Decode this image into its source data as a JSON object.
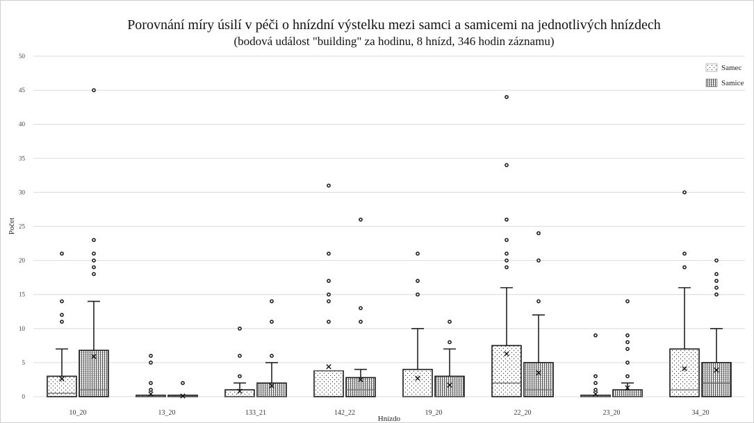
{
  "chart_data": {
    "type": "boxplot",
    "title": "Porovnání míry úsilí v péči o hnízdní výstelku mezi samci a samicemi na jednotlivých hnízdech",
    "subtitle": "(bodová událost \"building\" za hodinu, 8 hnízd, 346 hodin záznamu)",
    "xlabel": "Hnízdo",
    "ylabel": "Počet",
    "ylim": [
      0,
      50
    ],
    "yticks": [
      0,
      5,
      10,
      15,
      20,
      25,
      30,
      35,
      40,
      45,
      50
    ],
    "grid": true,
    "legend_position": "top-right",
    "categories": [
      "10_20",
      "13_20",
      "133_21",
      "142_22",
      "19_20",
      "22_20",
      "23_20",
      "34_20"
    ],
    "series": [
      {
        "name": "Samec",
        "pattern": "dots",
        "boxes": [
          {
            "whisker_low": 0,
            "q1": 0,
            "median": 0.5,
            "q3": 3,
            "whisker_high": 7,
            "mean": 2.6,
            "outliers": [
              11,
              12,
              14,
              21
            ]
          },
          {
            "whisker_low": 0,
            "q1": 0,
            "median": 0,
            "q3": 0,
            "whisker_high": 0,
            "mean": 0.4,
            "outliers": [
              1,
              2,
              5,
              6
            ]
          },
          {
            "whisker_low": 0,
            "q1": 0,
            "median": 0,
            "q3": 1,
            "whisker_high": 2,
            "mean": 0.8,
            "outliers": [
              3,
              6,
              10
            ]
          },
          {
            "whisker_low": 0,
            "q1": 0,
            "median": 3.8,
            "q3": 3.8,
            "whisker_high": 3.8,
            "mean": 4.4,
            "outliers": [
              11,
              14,
              15,
              17,
              21,
              31
            ]
          },
          {
            "whisker_low": 0,
            "q1": 0,
            "median": 0,
            "q3": 4,
            "whisker_high": 10,
            "mean": 2.7,
            "outliers": [
              15,
              17,
              21
            ]
          },
          {
            "whisker_low": 0,
            "q1": 0,
            "median": 2,
            "q3": 7.5,
            "whisker_high": 16,
            "mean": 6.3,
            "outliers": [
              19,
              20,
              21,
              23,
              26,
              34,
              44
            ]
          },
          {
            "whisker_low": 0,
            "q1": 0,
            "median": 0,
            "q3": 0,
            "whisker_high": 0,
            "mean": 0.4,
            "outliers": [
              1,
              2,
              3,
              9
            ]
          },
          {
            "whisker_low": 0,
            "q1": 0,
            "median": 1,
            "q3": 7,
            "whisker_high": 16,
            "mean": 4.1,
            "outliers": [
              19,
              21,
              30
            ]
          }
        ]
      },
      {
        "name": "Samice",
        "pattern": "vertical-lines",
        "boxes": [
          {
            "whisker_low": 0,
            "q1": 0,
            "median": 1,
            "q3": 6.8,
            "whisker_high": 14,
            "mean": 5.9,
            "outliers": [
              18,
              19,
              20,
              21,
              23,
              45
            ]
          },
          {
            "whisker_low": 0,
            "q1": 0,
            "median": 0,
            "q3": 0,
            "whisker_high": 0,
            "mean": 0.1,
            "outliers": [
              2
            ]
          },
          {
            "whisker_low": 0,
            "q1": 0,
            "median": 0,
            "q3": 2,
            "whisker_high": 5,
            "mean": 1.6,
            "outliers": [
              6,
              11,
              14
            ]
          },
          {
            "whisker_low": 0,
            "q1": 0,
            "median": 1,
            "q3": 2.8,
            "whisker_high": 4,
            "mean": 2.5,
            "outliers": [
              11,
              13,
              26
            ]
          },
          {
            "whisker_low": 0,
            "q1": 0,
            "median": 0,
            "q3": 3,
            "whisker_high": 7,
            "mean": 1.7,
            "outliers": [
              8,
              11
            ]
          },
          {
            "whisker_low": 0,
            "q1": 0,
            "median": 1,
            "q3": 5,
            "whisker_high": 12,
            "mean": 3.5,
            "outliers": [
              14,
              20,
              24
            ]
          },
          {
            "whisker_low": 0,
            "q1": 0,
            "median": 0,
            "q3": 1,
            "whisker_high": 2,
            "mean": 1.3,
            "outliers": [
              3,
              5,
              7,
              8,
              9,
              14
            ]
          },
          {
            "whisker_low": 0,
            "q1": 0,
            "median": 2,
            "q3": 5,
            "whisker_high": 10,
            "mean": 3.9,
            "outliers": [
              15,
              16,
              17,
              18,
              20
            ]
          }
        ]
      }
    ]
  }
}
